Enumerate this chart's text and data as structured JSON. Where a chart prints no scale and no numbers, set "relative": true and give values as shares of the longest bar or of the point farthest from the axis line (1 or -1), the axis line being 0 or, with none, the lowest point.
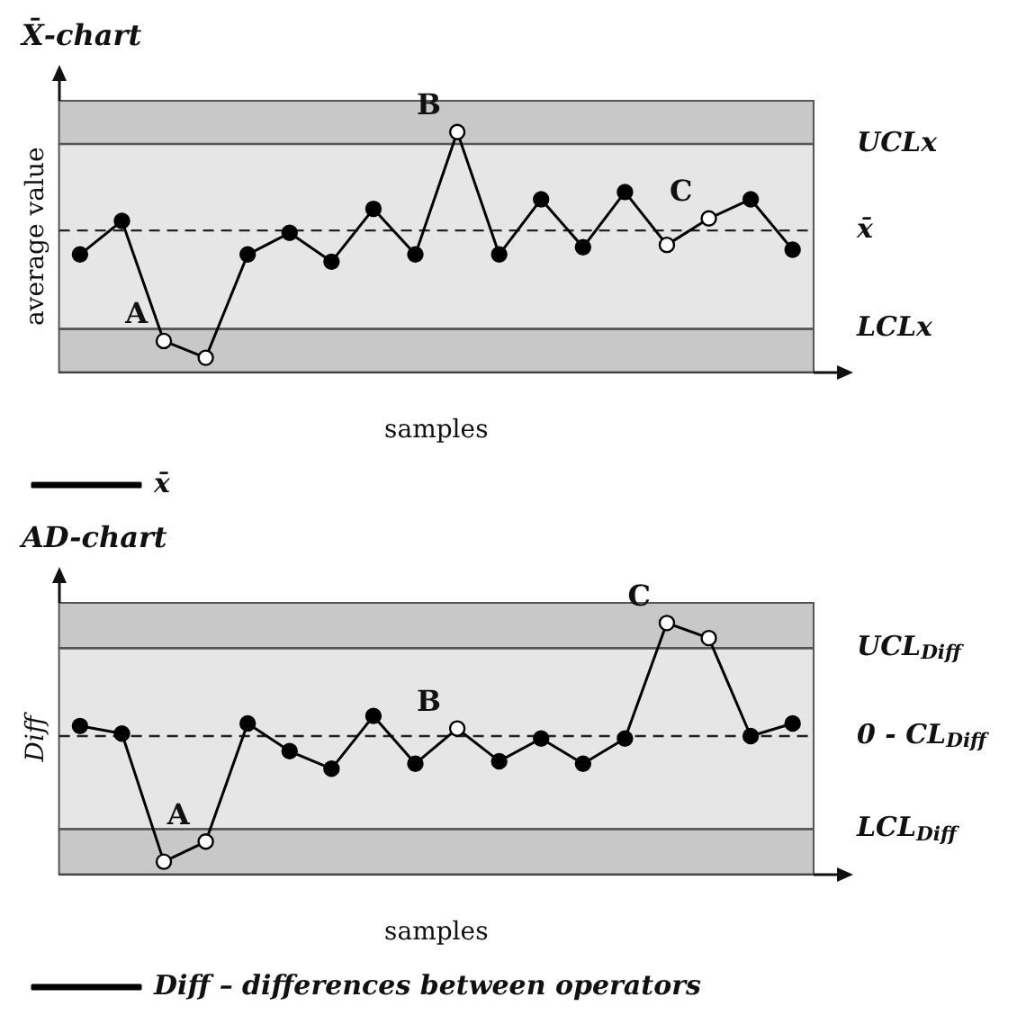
{
  "chart_data": [
    {
      "type": "line",
      "title": "X̄-chart",
      "ylabel": "average value",
      "xlabel": "samples",
      "relative": true,
      "legend": "bottom",
      "grid": false,
      "categories": [
        null,
        null,
        null,
        null,
        null,
        null,
        null,
        null,
        null,
        null,
        null,
        null,
        null,
        null,
        null,
        null,
        null,
        null
      ],
      "series": [
        {
          "name": "x̄",
          "color": "#000000",
          "marker": "circle",
          "line_style": "solid",
          "colors": [
            "#000000",
            "#000000",
            "#ffffff",
            "#ffffff",
            "#000000",
            "#000000",
            "#000000",
            "#000000",
            "#000000",
            "#ffffff",
            "#000000",
            "#000000",
            "#000000",
            "#000000",
            "#ffffff",
            "#ffffff",
            "#000000",
            "#000000"
          ],
          "values": [
            0.49,
            0.63,
            0.13,
            0.06,
            0.49,
            0.58,
            0.46,
            0.68,
            0.49,
            1,
            0.49,
            0.72,
            0.52,
            0.75,
            0.53,
            0.64,
            0.72,
            0.51
          ]
        }
      ],
      "bands": [
        {
          "axis": "y",
          "from": 0,
          "to": 0.18,
          "color": "#c8c8c8"
        },
        {
          "axis": "y",
          "from": 0.18,
          "to": 0.95,
          "color": "#e6e6e6"
        },
        {
          "axis": "y",
          "from": 0.95,
          "to": 1.13,
          "color": "#c8c8c8"
        }
      ],
      "ref_lines": [
        {
          "axis": "y",
          "value": 0.95,
          "label": "UCLx",
          "color": "#555555",
          "line_style": "solid"
        },
        {
          "axis": "y",
          "value": 0.59,
          "label": "x̄",
          "color": "#222222",
          "line_style": "dashed"
        },
        {
          "axis": "y",
          "value": 0.18,
          "label": "LCLx",
          "color": "#555555",
          "line_style": "solid"
        }
      ],
      "annotations": [
        "A",
        "B",
        "C"
      ]
    },
    {
      "type": "line",
      "title": "AD-chart",
      "ylabel": "Diff",
      "xlabel": "samples",
      "relative": true,
      "legend": "bottom",
      "grid": false,
      "categories": [
        null,
        null,
        null,
        null,
        null,
        null,
        null,
        null,
        null,
        null,
        null,
        null,
        null,
        null,
        null,
        null,
        null,
        null
      ],
      "series": [
        {
          "name": "Diff – differences between operators",
          "color": "#000000",
          "marker": "circle",
          "line_style": "solid",
          "colors": [
            "#000000",
            "#000000",
            "#ffffff",
            "#ffffff",
            "#000000",
            "#000000",
            "#000000",
            "#000000",
            "#000000",
            "#ffffff",
            "#000000",
            "#000000",
            "#000000",
            "#000000",
            "#ffffff",
            "#ffffff",
            "#000000",
            "#000000"
          ],
          "values": [
            0.59,
            0.56,
            0.05,
            0.13,
            0.6,
            0.49,
            0.42,
            0.63,
            0.44,
            0.58,
            0.45,
            0.54,
            0.44,
            0.54,
            1,
            0.94,
            0.55,
            0.6
          ]
        }
      ],
      "bands": [
        {
          "axis": "y",
          "from": 0,
          "to": 0.18,
          "color": "#c8c8c8"
        },
        {
          "axis": "y",
          "from": 0.18,
          "to": 0.9,
          "color": "#e6e6e6"
        },
        {
          "axis": "y",
          "from": 0.9,
          "to": 1.08,
          "color": "#c8c8c8"
        }
      ],
      "ref_lines": [
        {
          "axis": "y",
          "value": 0.9,
          "label": "UCL$_{Diff}$",
          "color": "#555555",
          "line_style": "solid"
        },
        {
          "axis": "y",
          "value": 0.55,
          "label": "0 - CL$_{Diff}$",
          "color": "#222222",
          "line_style": "dashed"
        },
        {
          "axis": "y",
          "value": 0.18,
          "label": "LCL$_{Diff}$",
          "color": "#555555",
          "line_style": "solid"
        }
      ],
      "annotations": [
        "A",
        "B",
        "C"
      ]
    }
  ]
}
